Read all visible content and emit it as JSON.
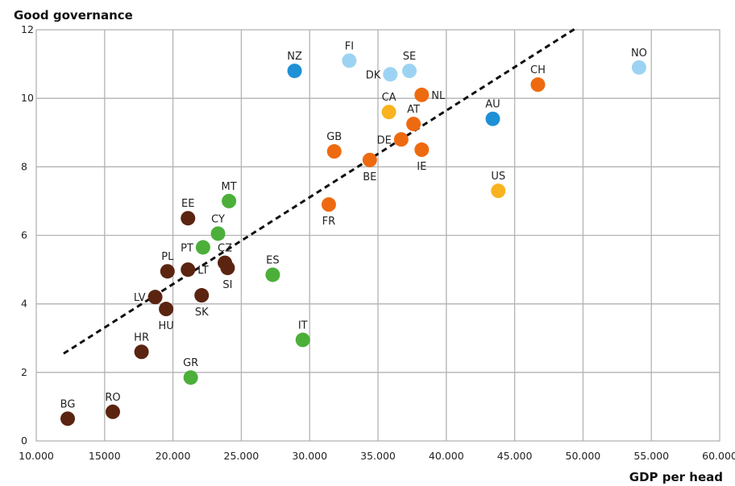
{
  "chart_data": {
    "type": "scatter",
    "ylabel": "Good governance",
    "xlabel": "GDP per head",
    "xlim": [
      10000,
      60000
    ],
    "ylim": [
      0,
      12
    ],
    "x_tick_labels": [
      "10.000",
      "15000",
      "20.000",
      "25.000",
      "30.000",
      "35.000",
      "40.000",
      "45.000",
      "50.000",
      "55.000",
      "60.000"
    ],
    "y_tick_labels": [
      "0",
      "2",
      "4",
      "6",
      "8",
      "10",
      "12"
    ],
    "colors": {
      "dark_brown": "#5a2410",
      "green": "#4caf3a",
      "orange": "#ee6a10",
      "light_blue": "#9dd3f2",
      "blue": "#1e90d6",
      "yellow": "#f9b320",
      "trend": "#111111"
    },
    "trendline": {
      "style": "dashed",
      "x": [
        12000,
        49500
      ],
      "y": [
        2.55,
        12.05
      ]
    },
    "points": [
      {
        "label": "BG",
        "x": 12300,
        "y": 0.65,
        "color": "dark_brown",
        "label_pos": "above"
      },
      {
        "label": "RO",
        "x": 15600,
        "y": 0.85,
        "color": "dark_brown",
        "label_pos": "above"
      },
      {
        "label": "HR",
        "x": 17700,
        "y": 2.6,
        "color": "dark_brown",
        "label_pos": "above"
      },
      {
        "label": "GR",
        "x": 21300,
        "y": 1.85,
        "color": "green",
        "label_pos": "above"
      },
      {
        "label": "LV",
        "x": 18700,
        "y": 4.2,
        "color": "dark_brown",
        "label_pos": "left"
      },
      {
        "label": "HU",
        "x": 19500,
        "y": 3.85,
        "color": "dark_brown",
        "label_pos": "below"
      },
      {
        "label": "PL",
        "x": 19600,
        "y": 4.95,
        "color": "dark_brown",
        "label_pos": "above"
      },
      {
        "label": "LT",
        "x": 21100,
        "y": 5.0,
        "color": "dark_brown",
        "label_pos": "right"
      },
      {
        "label": "EE",
        "x": 21100,
        "y": 6.5,
        "color": "dark_brown",
        "label_pos": "above"
      },
      {
        "label": "PT",
        "x": 22200,
        "y": 5.65,
        "color": "green",
        "label_pos": "left"
      },
      {
        "label": "SK",
        "x": 22100,
        "y": 4.25,
        "color": "dark_brown",
        "label_pos": "below"
      },
      {
        "label": "CY",
        "x": 23300,
        "y": 6.05,
        "color": "green",
        "label_pos": "above"
      },
      {
        "label": "CZ",
        "x": 23800,
        "y": 5.2,
        "color": "dark_brown",
        "label_pos": "above"
      },
      {
        "label": "SI",
        "x": 24000,
        "y": 5.05,
        "color": "dark_brown",
        "label_pos": "below"
      },
      {
        "label": "MT",
        "x": 24100,
        "y": 7.0,
        "color": "green",
        "label_pos": "above"
      },
      {
        "label": "ES",
        "x": 27300,
        "y": 4.85,
        "color": "green",
        "label_pos": "above"
      },
      {
        "label": "IT",
        "x": 29500,
        "y": 2.95,
        "color": "green",
        "label_pos": "above"
      },
      {
        "label": "NZ",
        "x": 28900,
        "y": 10.8,
        "color": "blue",
        "label_pos": "above"
      },
      {
        "label": "FR",
        "x": 31400,
        "y": 6.9,
        "color": "orange",
        "label_pos": "below"
      },
      {
        "label": "GB",
        "x": 31800,
        "y": 8.45,
        "color": "orange",
        "label_pos": "above"
      },
      {
        "label": "FI",
        "x": 32900,
        "y": 11.1,
        "color": "light_blue",
        "label_pos": "above"
      },
      {
        "label": "BE",
        "x": 34400,
        "y": 8.2,
        "color": "orange",
        "label_pos": "below"
      },
      {
        "label": "DK",
        "x": 35900,
        "y": 10.7,
        "color": "light_blue",
        "label_pos": "left"
      },
      {
        "label": "CA",
        "x": 35800,
        "y": 9.6,
        "color": "yellow",
        "label_pos": "above"
      },
      {
        "label": "DE",
        "x": 36700,
        "y": 8.8,
        "color": "orange",
        "label_pos": "left"
      },
      {
        "label": "SE",
        "x": 37300,
        "y": 10.8,
        "color": "light_blue",
        "label_pos": "above"
      },
      {
        "label": "AT",
        "x": 37600,
        "y": 9.25,
        "color": "orange",
        "label_pos": "above"
      },
      {
        "label": "NL",
        "x": 38200,
        "y": 10.1,
        "color": "orange",
        "label_pos": "right"
      },
      {
        "label": "IE",
        "x": 38200,
        "y": 8.5,
        "color": "orange",
        "label_pos": "below"
      },
      {
        "label": "AU",
        "x": 43400,
        "y": 9.4,
        "color": "blue",
        "label_pos": "above"
      },
      {
        "label": "US",
        "x": 43800,
        "y": 7.3,
        "color": "yellow",
        "label_pos": "above"
      },
      {
        "label": "CH",
        "x": 46700,
        "y": 10.4,
        "color": "orange",
        "label_pos": "above"
      },
      {
        "label": "NO",
        "x": 54100,
        "y": 10.9,
        "color": "light_blue",
        "label_pos": "above"
      }
    ]
  }
}
